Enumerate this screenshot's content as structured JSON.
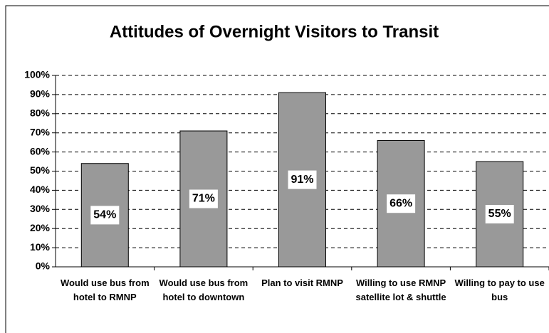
{
  "chart_data": {
    "type": "bar",
    "title": "Attitudes of Overnight Visitors to Transit",
    "categories": [
      "Would use bus from hotel to RMNP",
      "Would use bus from hotel to downtown",
      "Plan to visit RMNP",
      "Willing to use RMNP satellite lot & shuttle",
      "Willing to pay to use bus"
    ],
    "values": [
      54,
      71,
      91,
      66,
      55
    ],
    "value_labels": [
      "54%",
      "71%",
      "91%",
      "66%",
      "55%"
    ],
    "color": "#999999",
    "ylim": [
      0,
      100
    ],
    "yticks": [
      {
        "value": 0,
        "label": "0%"
      },
      {
        "value": 10,
        "label": "10%"
      },
      {
        "value": 20,
        "label": "20%"
      },
      {
        "value": 30,
        "label": "30%"
      },
      {
        "value": 40,
        "label": "40%"
      },
      {
        "value": 50,
        "label": "50%"
      },
      {
        "value": 60,
        "label": "60%"
      },
      {
        "value": 70,
        "label": "70%"
      },
      {
        "value": 80,
        "label": "80%"
      },
      {
        "value": 90,
        "label": "90%"
      },
      {
        "value": 100,
        "label": "100%"
      }
    ],
    "grid": true
  }
}
